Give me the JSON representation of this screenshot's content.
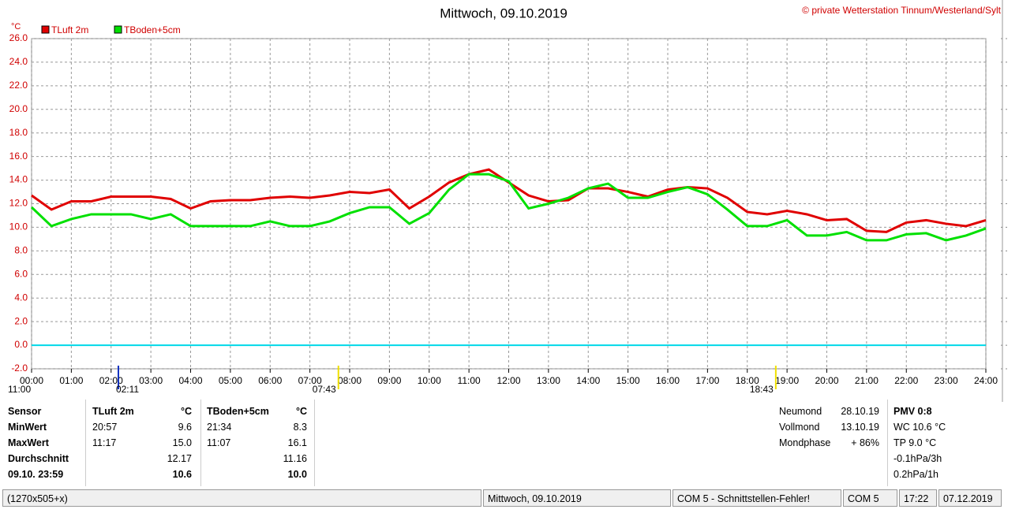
{
  "chart_data": {
    "type": "line",
    "title": "Mittwoch, 09.10.2019",
    "credit": "© private Wetterstation Tinnum/Westerland/Sylt",
    "y_label": "°C",
    "x": [
      0,
      0.5,
      1,
      1.5,
      2,
      2.5,
      3,
      3.5,
      4,
      4.5,
      5,
      5.5,
      6,
      6.5,
      7,
      7.5,
      8,
      8.5,
      9,
      9.5,
      10,
      10.5,
      11,
      11.5,
      12,
      12.5,
      13,
      13.5,
      14,
      14.5,
      15,
      15.5,
      16,
      16.5,
      17,
      17.5,
      18,
      18.5,
      19,
      19.5,
      20,
      20.5,
      21,
      21.5,
      22,
      22.5,
      23,
      23.5,
      24
    ],
    "series": [
      {
        "name": "TLuft 2m",
        "color": "#e00000",
        "values": [
          12.7,
          11.5,
          12.2,
          12.2,
          12.6,
          12.6,
          12.6,
          12.4,
          11.6,
          12.2,
          12.3,
          12.3,
          12.5,
          12.6,
          12.5,
          12.7,
          13.0,
          12.9,
          13.2,
          11.6,
          12.6,
          13.8,
          14.5,
          14.9,
          13.8,
          12.7,
          12.2,
          12.3,
          13.3,
          13.3,
          13.0,
          12.6,
          13.2,
          13.4,
          13.3,
          12.5,
          11.3,
          11.1,
          11.4,
          11.1,
          10.6,
          10.7,
          9.7,
          9.6,
          10.4,
          10.6,
          10.3,
          10.1,
          10.6
        ]
      },
      {
        "name": "TBoden+5cm",
        "color": "#00e000",
        "values": [
          11.7,
          10.1,
          10.7,
          11.1,
          11.1,
          11.1,
          10.7,
          11.1,
          10.1,
          10.1,
          10.1,
          10.1,
          10.5,
          10.1,
          10.1,
          10.5,
          11.2,
          11.7,
          11.7,
          10.3,
          11.2,
          13.2,
          14.5,
          14.5,
          13.9,
          11.6,
          12.0,
          12.5,
          13.3,
          13.7,
          12.5,
          12.5,
          13.0,
          13.4,
          12.8,
          11.5,
          10.1,
          10.1,
          10.6,
          9.3,
          9.3,
          9.6,
          8.9,
          8.9,
          9.4,
          9.5,
          8.9,
          9.3,
          9.9
        ]
      }
    ],
    "reference_line": 0,
    "reference_color": "#00d8e8",
    "xlim": [
      0,
      24
    ],
    "xticks": [
      {
        "value": 0,
        "label": "00:00"
      },
      {
        "value": 1,
        "label": "01:00"
      },
      {
        "value": 2,
        "label": "02:00"
      },
      {
        "value": 3,
        "label": "03:00"
      },
      {
        "value": 4,
        "label": "04:00"
      },
      {
        "value": 5,
        "label": "05:00"
      },
      {
        "value": 6,
        "label": "06:00"
      },
      {
        "value": 7,
        "label": "07:00"
      },
      {
        "value": 8,
        "label": "08:00"
      },
      {
        "value": 9,
        "label": "09:00"
      },
      {
        "value": 10,
        "label": "10:00"
      },
      {
        "value": 11,
        "label": "11:00"
      },
      {
        "value": 12,
        "label": "12:00"
      },
      {
        "value": 13,
        "label": "13:00"
      },
      {
        "value": 14,
        "label": "14:00"
      },
      {
        "value": 15,
        "label": "15:00"
      },
      {
        "value": 16,
        "label": "16:00"
      },
      {
        "value": 17,
        "label": "17:00"
      },
      {
        "value": 18,
        "label": "18:00"
      },
      {
        "value": 19,
        "label": "19:00"
      },
      {
        "value": 20,
        "label": "20:00"
      },
      {
        "value": 21,
        "label": "21:00"
      },
      {
        "value": 22,
        "label": "22:00"
      },
      {
        "value": 23,
        "label": "23:00"
      },
      {
        "value": 24,
        "label": "24:00"
      }
    ],
    "ylim": [
      -2,
      26
    ],
    "yticks": [
      {
        "value": -2,
        "label": "-2.0"
      },
      {
        "value": 0,
        "label": "0.0"
      },
      {
        "value": 2,
        "label": "2.0"
      },
      {
        "value": 4,
        "label": "4.0"
      },
      {
        "value": 6,
        "label": "6.0"
      },
      {
        "value": 8,
        "label": "8.0"
      },
      {
        "value": 10,
        "label": "10.0"
      },
      {
        "value": 12,
        "label": "12.0"
      },
      {
        "value": 14,
        "label": "14.0"
      },
      {
        "value": 16,
        "label": "16.0"
      },
      {
        "value": 18,
        "label": "18.0"
      },
      {
        "value": 20,
        "label": "20.0"
      },
      {
        "value": 22,
        "label": "22.0"
      },
      {
        "value": 24,
        "label": "24.0"
      },
      {
        "value": 26,
        "label": "26.0"
      }
    ],
    "grid": true,
    "markers": [
      {
        "x": 2.183,
        "label": "02:11",
        "color": "#1030c0"
      },
      {
        "x": 7.717,
        "label": "07:43",
        "color": "#f0e000"
      },
      {
        "x": 18.717,
        "label": "18:43",
        "color": "#f0e000"
      }
    ],
    "left_label": "11:00"
  },
  "table": {
    "header": [
      "Sensor",
      "TLuft 2m",
      "°C",
      "TBoden+5cm",
      "°C"
    ],
    "rows": [
      [
        "MinWert",
        "20:57",
        "9.6",
        "21:34",
        "8.3"
      ],
      [
        "MaxWert",
        "11:17",
        "15.0",
        "11:07",
        "16.1"
      ],
      [
        "Durchschnitt",
        "",
        "12.17",
        "",
        "11.16"
      ],
      [
        "09.10. 23:59",
        "",
        "10.6",
        "",
        "10.0"
      ]
    ]
  },
  "moon": [
    [
      "Neumond",
      "28.10.19"
    ],
    [
      "Vollmond",
      "13.10.19"
    ],
    [
      "Mondphase",
      "+ 86%"
    ]
  ],
  "extra": {
    "title": "PMV 0:8",
    "lines": [
      "WC 10.6 °C",
      "TP 9.0 °C",
      "-0.1hPa/3h",
      "0.2hPa/1h"
    ]
  },
  "status_bar": [
    "(1270x505+x)",
    "Mittwoch, 09.10.2019",
    "COM 5 - Schnittstellen-Fehler!",
    "COM 5",
    "17:22",
    "07.12.2019"
  ]
}
